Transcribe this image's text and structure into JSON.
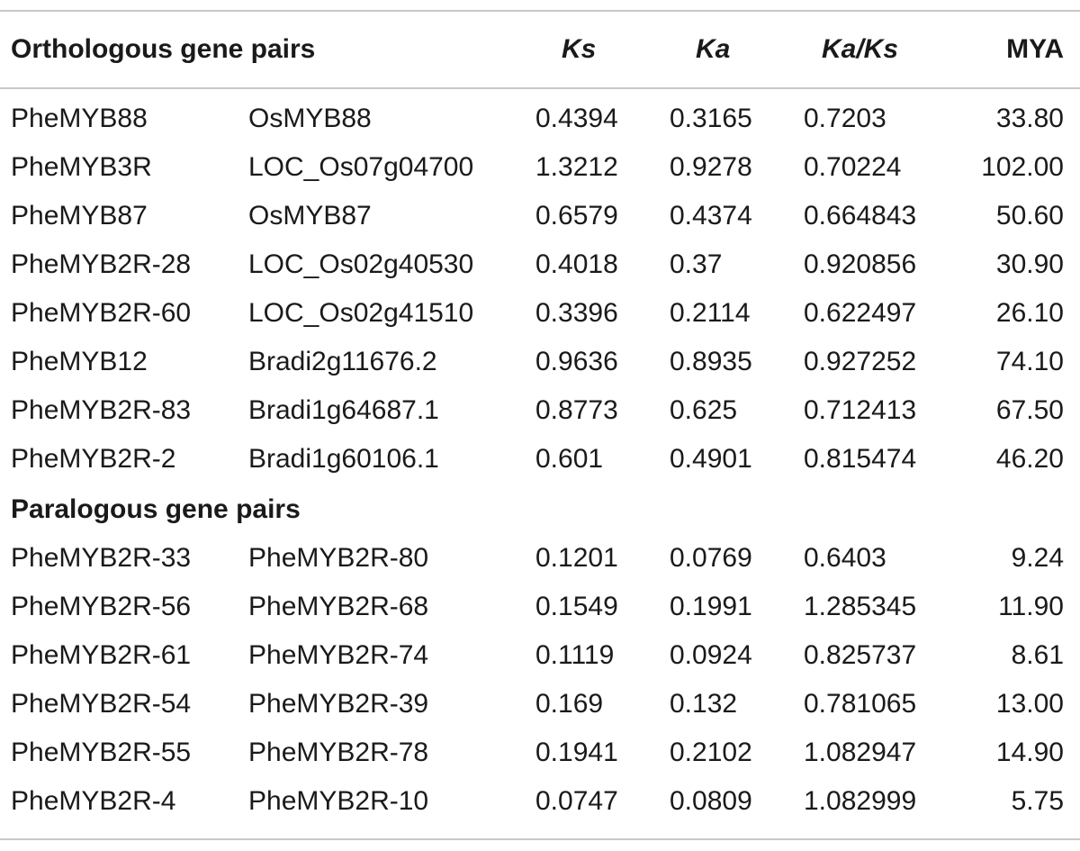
{
  "header": {
    "col_pair": "Orthologous gene pairs",
    "col_ks": "Ks",
    "col_ka": "Ka",
    "col_kaks": "Ka/Ks",
    "col_mya": "MYA"
  },
  "orthologous": [
    {
      "gene1": "PheMYB88",
      "gene2": "OsMYB88",
      "ks": "0.4394",
      "ka": "0.3165",
      "kaks": "0.7203",
      "mya": "33.80"
    },
    {
      "gene1": "PheMYB3R",
      "gene2": "LOC_Os07g04700",
      "ks": "1.3212",
      "ka": "0.9278",
      "kaks": "0.70224",
      "mya": "102.00"
    },
    {
      "gene1": "PheMYB87",
      "gene2": "OsMYB87",
      "ks": "0.6579",
      "ka": "0.4374",
      "kaks": "0.664843",
      "mya": "50.60"
    },
    {
      "gene1": "PheMYB2R-28",
      "gene2": "LOC_Os02g40530",
      "ks": "0.4018",
      "ka": "0.37",
      "kaks": "0.920856",
      "mya": "30.90"
    },
    {
      "gene1": "PheMYB2R-60",
      "gene2": "LOC_Os02g41510",
      "ks": "0.3396",
      "ka": "0.2114",
      "kaks": "0.622497",
      "mya": "26.10"
    },
    {
      "gene1": "PheMYB12",
      "gene2": "Bradi2g11676.2",
      "ks": "0.9636",
      "ka": "0.8935",
      "kaks": "0.927252",
      "mya": "74.10"
    },
    {
      "gene1": "PheMYB2R-83",
      "gene2": "Bradi1g64687.1",
      "ks": "0.8773",
      "ka": "0.625",
      "kaks": "0.712413",
      "mya": "67.50"
    },
    {
      "gene1": "PheMYB2R-2",
      "gene2": "Bradi1g60106.1",
      "ks": "0.601",
      "ka": "0.4901",
      "kaks": "0.815474",
      "mya": "46.20"
    }
  ],
  "paralogous_label": "Paralogous gene pairs",
  "paralogous": [
    {
      "gene1": "PheMYB2R-33",
      "gene2": "PheMYB2R-80",
      "ks": "0.1201",
      "ka": "0.0769",
      "kaks": "0.6403",
      "mya": "9.24"
    },
    {
      "gene1": "PheMYB2R-56",
      "gene2": "PheMYB2R-68",
      "ks": "0.1549",
      "ka": "0.1991",
      "kaks": "1.285345",
      "mya": "11.90"
    },
    {
      "gene1": "PheMYB2R-61",
      "gene2": "PheMYB2R-74",
      "ks": "0.1119",
      "ka": "0.0924",
      "kaks": "0.825737",
      "mya": "8.61"
    },
    {
      "gene1": "PheMYB2R-54",
      "gene2": "PheMYB2R-39",
      "ks": "0.169",
      "ka": "0.132",
      "kaks": "0.781065",
      "mya": "13.00"
    },
    {
      "gene1": "PheMYB2R-55",
      "gene2": "PheMYB2R-78",
      "ks": "0.1941",
      "ka": "0.2102",
      "kaks": "1.082947",
      "mya": "14.90"
    },
    {
      "gene1": "PheMYB2R-4",
      "gene2": "PheMYB2R-10",
      "ks": "0.0747",
      "ka": "0.0809",
      "kaks": "1.082999",
      "mya": "5.75"
    }
  ]
}
